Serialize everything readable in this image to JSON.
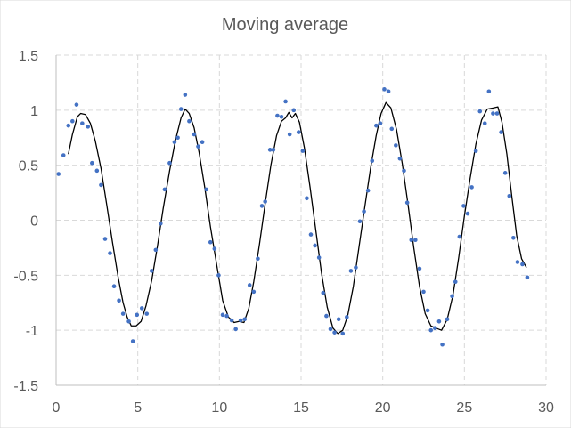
{
  "chart_data": {
    "type": "scatter",
    "title": "Moving average",
    "xlabel": "",
    "ylabel": "",
    "xlim": [
      0,
      30
    ],
    "ylim": [
      -1.5,
      1.5
    ],
    "x_ticks": [
      0,
      5,
      10,
      15,
      20,
      25,
      30
    ],
    "y_ticks": [
      -1.5,
      -1,
      -0.5,
      0,
      0.5,
      1,
      1.5
    ],
    "x_tick_labels": [
      "0",
      "5",
      "10",
      "15",
      "20",
      "25",
      "30"
    ],
    "y_tick_labels": [
      "-1.5",
      "-1",
      "-0.5",
      "0",
      "0.5",
      "1",
      "1.5"
    ],
    "grid": true,
    "legend": "none",
    "colors": {
      "points": "#4472c4",
      "line": "#000000",
      "grid": "#d9d9d9",
      "text": "#595959"
    },
    "series": [
      {
        "type": "scatter",
        "points": [
          [
            0.15,
            0.42
          ],
          [
            0.45,
            0.59
          ],
          [
            0.75,
            0.86
          ],
          [
            1.0,
            0.9
          ],
          [
            1.25,
            1.05
          ],
          [
            1.6,
            0.88
          ],
          [
            1.95,
            0.85
          ],
          [
            2.2,
            0.52
          ],
          [
            2.5,
            0.45
          ],
          [
            2.75,
            0.32
          ],
          [
            3.0,
            -0.17
          ],
          [
            3.3,
            -0.3
          ],
          [
            3.55,
            -0.6
          ],
          [
            3.85,
            -0.73
          ],
          [
            4.1,
            -0.85
          ],
          [
            4.45,
            -0.92
          ],
          [
            4.7,
            -1.1
          ],
          [
            4.95,
            -0.86
          ],
          [
            5.25,
            -0.8
          ],
          [
            5.55,
            -0.85
          ],
          [
            5.85,
            -0.46
          ],
          [
            6.1,
            -0.27
          ],
          [
            6.4,
            -0.03
          ],
          [
            6.65,
            0.28
          ],
          [
            6.95,
            0.52
          ],
          [
            7.25,
            0.71
          ],
          [
            7.45,
            0.75
          ],
          [
            7.65,
            1.01
          ],
          [
            7.9,
            1.14
          ],
          [
            8.15,
            0.9
          ],
          [
            8.45,
            0.78
          ],
          [
            8.7,
            0.67
          ],
          [
            8.95,
            0.71
          ],
          [
            9.2,
            0.28
          ],
          [
            9.45,
            -0.2
          ],
          [
            9.7,
            -0.26
          ],
          [
            9.95,
            -0.5
          ],
          [
            10.2,
            -0.86
          ],
          [
            10.45,
            -0.87
          ],
          [
            10.75,
            -0.91
          ],
          [
            11.0,
            -0.99
          ],
          [
            11.3,
            -0.91
          ],
          [
            11.55,
            -0.9
          ],
          [
            11.85,
            -0.59
          ],
          [
            12.1,
            -0.65
          ],
          [
            12.35,
            -0.35
          ],
          [
            12.6,
            0.13
          ],
          [
            12.8,
            0.17
          ],
          [
            13.1,
            0.64
          ],
          [
            13.3,
            0.64
          ],
          [
            13.55,
            0.95
          ],
          [
            13.8,
            0.94
          ],
          [
            14.05,
            1.08
          ],
          [
            14.3,
            0.78
          ],
          [
            14.55,
            1.0
          ],
          [
            14.85,
            0.8
          ],
          [
            15.1,
            0.63
          ],
          [
            15.35,
            0.2
          ],
          [
            15.6,
            -0.13
          ],
          [
            15.85,
            -0.23
          ],
          [
            16.1,
            -0.34
          ],
          [
            16.35,
            -0.66
          ],
          [
            16.55,
            -0.87
          ],
          [
            16.8,
            -0.99
          ],
          [
            17.05,
            -1.02
          ],
          [
            17.3,
            -0.9
          ],
          [
            17.55,
            -1.03
          ],
          [
            17.8,
            -0.88
          ],
          [
            18.05,
            -0.46
          ],
          [
            18.35,
            -0.43
          ],
          [
            18.6,
            -0.01
          ],
          [
            18.85,
            0.08
          ],
          [
            19.1,
            0.27
          ],
          [
            19.35,
            0.54
          ],
          [
            19.6,
            0.86
          ],
          [
            19.85,
            0.88
          ],
          [
            20.1,
            1.19
          ],
          [
            20.35,
            1.17
          ],
          [
            20.55,
            0.83
          ],
          [
            20.8,
            0.68
          ],
          [
            21.05,
            0.56
          ],
          [
            21.3,
            0.45
          ],
          [
            21.5,
            0.16
          ],
          [
            21.75,
            -0.18
          ],
          [
            22.0,
            -0.18
          ],
          [
            22.25,
            -0.44
          ],
          [
            22.5,
            -0.65
          ],
          [
            22.75,
            -0.82
          ],
          [
            22.95,
            -1.0
          ],
          [
            23.2,
            -0.98
          ],
          [
            23.45,
            -0.92
          ],
          [
            23.65,
            -1.13
          ],
          [
            23.95,
            -0.9
          ],
          [
            24.25,
            -0.69
          ],
          [
            24.45,
            -0.56
          ],
          [
            24.7,
            -0.15
          ],
          [
            24.95,
            0.13
          ],
          [
            25.2,
            0.06
          ],
          [
            25.45,
            0.3
          ],
          [
            25.7,
            0.63
          ],
          [
            25.95,
            0.99
          ],
          [
            26.25,
            0.88
          ],
          [
            26.5,
            1.17
          ],
          [
            26.75,
            0.97
          ],
          [
            27.0,
            0.97
          ],
          [
            27.25,
            0.8
          ],
          [
            27.5,
            0.43
          ],
          [
            27.75,
            0.22
          ],
          [
            28.0,
            -0.16
          ],
          [
            28.25,
            -0.38
          ],
          [
            28.55,
            -0.4
          ],
          [
            28.85,
            -0.52
          ]
        ]
      },
      {
        "type": "line",
        "points": [
          [
            0.75,
            0.6
          ],
          [
            1.0,
            0.78
          ],
          [
            1.3,
            0.94
          ],
          [
            1.5,
            0.97
          ],
          [
            1.8,
            0.96
          ],
          [
            2.1,
            0.88
          ],
          [
            2.4,
            0.72
          ],
          [
            2.75,
            0.47
          ],
          [
            3.1,
            0.14
          ],
          [
            3.45,
            -0.2
          ],
          [
            3.8,
            -0.52
          ],
          [
            4.1,
            -0.75
          ],
          [
            4.35,
            -0.88
          ],
          [
            4.6,
            -0.96
          ],
          [
            4.9,
            -0.96
          ],
          [
            5.2,
            -0.92
          ],
          [
            5.5,
            -0.78
          ],
          [
            5.85,
            -0.55
          ],
          [
            6.2,
            -0.24
          ],
          [
            6.55,
            0.1
          ],
          [
            6.95,
            0.45
          ],
          [
            7.3,
            0.72
          ],
          [
            7.65,
            0.93
          ],
          [
            7.9,
            1.01
          ],
          [
            8.15,
            0.97
          ],
          [
            8.45,
            0.84
          ],
          [
            8.75,
            0.62
          ],
          [
            9.1,
            0.3
          ],
          [
            9.45,
            -0.06
          ],
          [
            9.85,
            -0.42
          ],
          [
            10.2,
            -0.73
          ],
          [
            10.55,
            -0.88
          ],
          [
            10.9,
            -0.93
          ],
          [
            11.2,
            -0.92
          ],
          [
            11.5,
            -0.93
          ],
          [
            11.8,
            -0.8
          ],
          [
            12.1,
            -0.56
          ],
          [
            12.45,
            -0.22
          ],
          [
            12.8,
            0.15
          ],
          [
            13.15,
            0.5
          ],
          [
            13.5,
            0.77
          ],
          [
            13.8,
            0.9
          ],
          [
            14.05,
            0.93
          ],
          [
            14.25,
            0.98
          ],
          [
            14.45,
            0.93
          ],
          [
            14.65,
            0.97
          ],
          [
            14.9,
            0.89
          ],
          [
            15.2,
            0.66
          ],
          [
            15.55,
            0.3
          ],
          [
            15.9,
            -0.09
          ],
          [
            16.25,
            -0.48
          ],
          [
            16.6,
            -0.79
          ],
          [
            16.95,
            -0.98
          ],
          [
            17.25,
            -1.03
          ],
          [
            17.55,
            -1.0
          ],
          [
            17.85,
            -0.87
          ],
          [
            18.2,
            -0.6
          ],
          [
            18.55,
            -0.24
          ],
          [
            18.9,
            0.12
          ],
          [
            19.25,
            0.47
          ],
          [
            19.6,
            0.77
          ],
          [
            19.9,
            0.97
          ],
          [
            20.2,
            1.07
          ],
          [
            20.5,
            1.02
          ],
          [
            20.85,
            0.82
          ],
          [
            21.2,
            0.51
          ],
          [
            21.55,
            0.14
          ],
          [
            21.9,
            -0.25
          ],
          [
            22.25,
            -0.6
          ],
          [
            22.6,
            -0.85
          ],
          [
            22.95,
            -0.96
          ],
          [
            23.25,
            -0.98
          ],
          [
            23.6,
            -1.0
          ],
          [
            23.95,
            -0.9
          ],
          [
            24.3,
            -0.68
          ],
          [
            24.65,
            -0.34
          ],
          [
            25.0,
            0.04
          ],
          [
            25.35,
            0.38
          ],
          [
            25.7,
            0.69
          ],
          [
            26.05,
            0.91
          ],
          [
            26.4,
            1.01
          ],
          [
            26.75,
            1.02
          ],
          [
            27.05,
            1.03
          ],
          [
            27.3,
            0.89
          ],
          [
            27.6,
            0.6
          ],
          [
            27.9,
            0.22
          ],
          [
            28.2,
            -0.14
          ],
          [
            28.5,
            -0.35
          ],
          [
            28.8,
            -0.43
          ]
        ]
      }
    ]
  }
}
